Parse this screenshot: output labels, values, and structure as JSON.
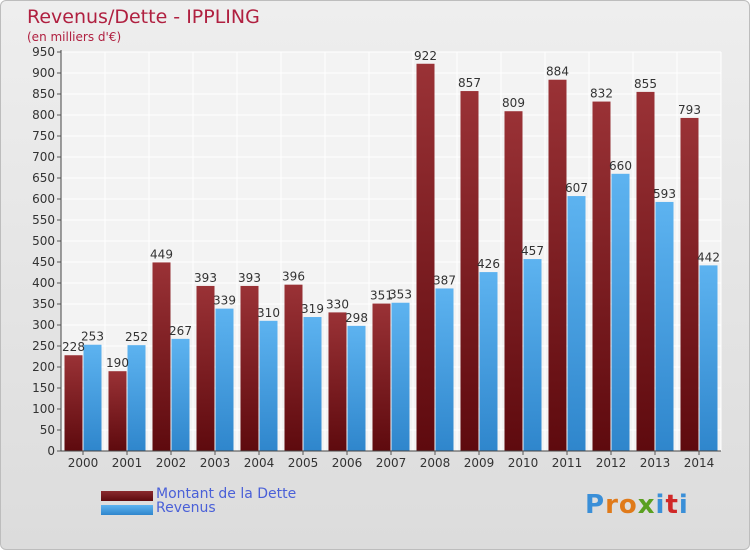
{
  "header": {
    "title": "Revenus/Dette - IPPLING",
    "subtitle": "(en milliers d'€)"
  },
  "legend": {
    "items": [
      {
        "label": "Montant de la Dette",
        "color": "#7a1a1e"
      },
      {
        "label": "Revenus",
        "color": "#4aa3e8"
      }
    ]
  },
  "logo": {
    "text": "Proxiti"
  },
  "chart_data": {
    "type": "bar",
    "title": "Revenus/Dette - IPPLING",
    "ylabel": "(en milliers d'€)",
    "xlabel": "",
    "ylim": [
      0,
      950
    ],
    "yticks": [
      0,
      50,
      100,
      150,
      200,
      250,
      300,
      350,
      400,
      450,
      500,
      550,
      600,
      650,
      700,
      750,
      800,
      850,
      900,
      950
    ],
    "grid": true,
    "legend_position": "bottom-left",
    "categories": [
      "2000",
      "2001",
      "2002",
      "2003",
      "2004",
      "2005",
      "2006",
      "2007",
      "2008",
      "2009",
      "2010",
      "2011",
      "2012",
      "2013",
      "2014"
    ],
    "series": [
      {
        "name": "Montant de la Dette",
        "color": "#7a1a1e",
        "values": [
          228,
          190,
          449,
          393,
          393,
          396,
          330,
          351,
          922,
          857,
          809,
          884,
          832,
          855,
          793
        ]
      },
      {
        "name": "Revenus",
        "color": "#4aa3e8",
        "values": [
          253,
          252,
          267,
          339,
          310,
          319,
          298,
          353,
          387,
          426,
          457,
          607,
          660,
          593,
          442
        ]
      }
    ]
  }
}
